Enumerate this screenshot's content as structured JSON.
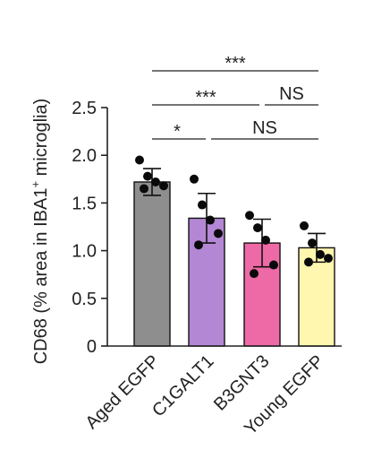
{
  "chart_data": {
    "type": "bar",
    "ylabel_main": "CD68 (% area in IBA1",
    "ylabel_sup": "+",
    "ylabel_end": " microglia)",
    "ylim": [
      0,
      2.5
    ],
    "yticks": [
      "0",
      "0.5",
      "1.0",
      "1.5",
      "2.0",
      "2.5"
    ],
    "ytick_values": [
      0,
      0.5,
      1.0,
      1.5,
      2.0,
      2.5
    ],
    "categories": [
      "Aged EGFP",
      "C1GALT1",
      "B3GNT3",
      "Young EGFP"
    ],
    "values": [
      1.72,
      1.34,
      1.08,
      1.03
    ],
    "errors": [
      0.14,
      0.26,
      0.25,
      0.15
    ],
    "colors": [
      "#8e8e8e",
      "#b487d4",
      "#ee6aa7",
      "#fff6b0"
    ],
    "points": [
      [
        1.95,
        1.78,
        1.72,
        1.68,
        1.65
      ],
      [
        1.75,
        1.48,
        1.32,
        1.18,
        1.06
      ],
      [
        1.37,
        1.24,
        1.11,
        0.85,
        0.76
      ],
      [
        1.26,
        1.08,
        0.96,
        0.92,
        0.88
      ]
    ],
    "significance": [
      {
        "from": 0,
        "to": 1,
        "label": "*"
      },
      {
        "from": 1,
        "to": 3,
        "label": "NS"
      },
      {
        "from": 0,
        "to": 2,
        "label": "***"
      },
      {
        "from": 2,
        "to": 3,
        "label": "NS"
      },
      {
        "from": 0,
        "to": 3,
        "label": "***"
      }
    ],
    "grid": false,
    "legend": "none"
  }
}
